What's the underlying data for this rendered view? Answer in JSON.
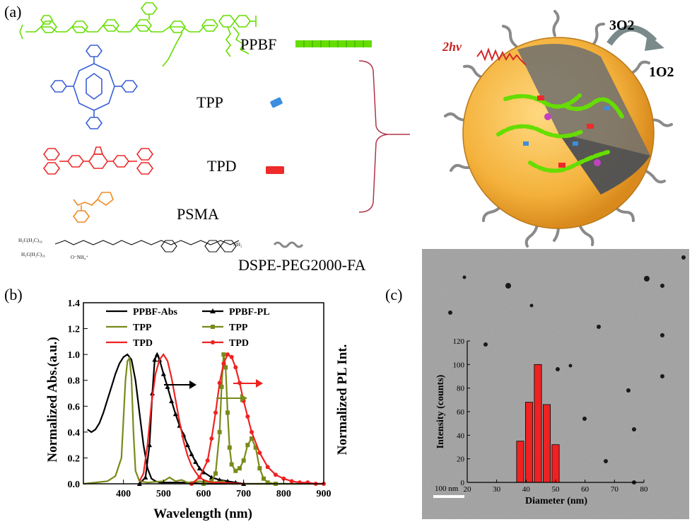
{
  "panel_a": {
    "label": "(a)",
    "molecules": [
      {
        "name": "PPBF",
        "color": "#66dd00"
      },
      {
        "name": "TPP",
        "color": "#3a5fd8"
      },
      {
        "name": "TPD",
        "color": "#ee2a2a"
      },
      {
        "name": "PSMA",
        "color": "#f08a24"
      },
      {
        "name": "DSPE-PEG2000-FA",
        "color": "#222222"
      }
    ],
    "dspe_fragments": {
      "chain1": "H3C(H2C)16",
      "chain2": "H3C(H2C)16",
      "nh4": "O-NH4+",
      "amine": "NH2"
    },
    "nanoparticle": {
      "excitation": "2hv",
      "oxygen_in": "3O2",
      "oxygen_out": "1O2"
    }
  },
  "panel_b": {
    "label": "(b)",
    "chart_data": {
      "type": "line",
      "xlabel": "Wavelength (nm)",
      "ylabel_left": "Normalized Abs.(a.u.)",
      "ylabel_right": "Normalized PL Int.",
      "xlim": [
        300,
        900
      ],
      "ylim": [
        0,
        1.4
      ],
      "xticks": [
        400,
        500,
        600,
        700,
        800,
        900
      ],
      "yticks": [
        "0.0",
        "0.2",
        "0.4",
        "0.6",
        "0.8",
        "1.0",
        "1.2",
        "1.4"
      ],
      "legend_position": "top",
      "series": [
        {
          "name": "PPBF-Abs",
          "color": "#000000",
          "marker": "none",
          "x": [
            310,
            320,
            330,
            340,
            350,
            360,
            370,
            380,
            390,
            400,
            410,
            420,
            430,
            440,
            450,
            460,
            470,
            480,
            490,
            500,
            520,
            560,
            600,
            700,
            900
          ],
          "y": [
            0.42,
            0.4,
            0.42,
            0.47,
            0.55,
            0.65,
            0.75,
            0.85,
            0.93,
            0.98,
            1.0,
            0.96,
            0.8,
            0.55,
            0.3,
            0.12,
            0.04,
            0.02,
            0.01,
            0.01,
            0.01,
            0.01,
            0.0,
            0.0,
            0.0
          ]
        },
        {
          "name": "PPBF-PL",
          "color": "#000000",
          "marker": "triangle",
          "x": [
            440,
            455,
            465,
            472,
            478,
            484,
            490,
            500,
            510,
            520,
            530,
            540,
            550,
            560,
            570,
            580,
            590,
            600,
            620,
            640,
            660,
            680,
            700
          ],
          "y": [
            0.0,
            0.05,
            0.3,
            0.7,
            0.96,
            1.0,
            0.96,
            0.85,
            0.75,
            0.64,
            0.54,
            0.45,
            0.38,
            0.3,
            0.23,
            0.17,
            0.12,
            0.09,
            0.05,
            0.03,
            0.02,
            0.01,
            0.0
          ]
        },
        {
          "name": "TPP",
          "color": "#7a8a1a",
          "marker": "none",
          "x": [
            300,
            360,
            380,
            395,
            405,
            410,
            415,
            420,
            425,
            430,
            440,
            460,
            500,
            515,
            530,
            545,
            560,
            590,
            620,
            650,
            660,
            700,
            900
          ],
          "y": [
            0.0,
            0.02,
            0.06,
            0.2,
            0.8,
            0.95,
            0.97,
            0.82,
            0.4,
            0.1,
            0.02,
            0.01,
            0.02,
            0.05,
            0.02,
            0.03,
            0.01,
            0.02,
            0.01,
            0.02,
            0.0,
            0.0,
            0.0
          ]
        },
        {
          "name": "TPP",
          "color": "#7a8a1a",
          "marker": "square",
          "x": [
            600,
            620,
            630,
            640,
            645,
            650,
            655,
            660,
            665,
            670,
            680,
            690,
            700,
            710,
            720,
            730,
            740,
            750,
            760,
            780
          ],
          "y": [
            0.0,
            0.02,
            0.08,
            0.4,
            0.75,
            1.0,
            0.9,
            0.55,
            0.28,
            0.15,
            0.1,
            0.12,
            0.18,
            0.3,
            0.35,
            0.28,
            0.12,
            0.04,
            0.01,
            0.0
          ]
        },
        {
          "name": "TPD",
          "color": "#ee2222",
          "marker": "none",
          "x": [
            440,
            450,
            460,
            470,
            480,
            490,
            500,
            510,
            520,
            530,
            540,
            550,
            560,
            570,
            580,
            590,
            600,
            620,
            640,
            700
          ],
          "y": [
            0.02,
            0.08,
            0.3,
            0.62,
            0.85,
            0.96,
            1.0,
            0.95,
            0.82,
            0.65,
            0.48,
            0.33,
            0.22,
            0.14,
            0.09,
            0.05,
            0.03,
            0.01,
            0.01,
            0.0
          ]
        },
        {
          "name": "TPD",
          "color": "#ee2222",
          "marker": "circle",
          "x": [
            570,
            590,
            610,
            620,
            630,
            640,
            650,
            660,
            670,
            680,
            690,
            700,
            710,
            720,
            740,
            760,
            780,
            800,
            820,
            840,
            860,
            880,
            900
          ],
          "y": [
            0.0,
            0.05,
            0.18,
            0.35,
            0.55,
            0.78,
            0.93,
            1.0,
            0.98,
            0.9,
            0.78,
            0.64,
            0.52,
            0.4,
            0.24,
            0.13,
            0.07,
            0.04,
            0.02,
            0.01,
            0.01,
            0.0,
            0.0
          ]
        }
      ]
    }
  },
  "panel_c": {
    "label": "(c)",
    "scale_bar": "100 nm",
    "chart_data": {
      "type": "bar",
      "xlabel": "Diameter (nm)",
      "ylabel": "Intensity (counts)",
      "xlim": [
        20,
        80
      ],
      "ylim": [
        0,
        120
      ],
      "xticks": [
        20,
        30,
        40,
        50,
        60,
        70,
        80
      ],
      "yticks": [
        0,
        20,
        40,
        60,
        80,
        100,
        120
      ],
      "categories": [
        38,
        41,
        44,
        47,
        50
      ],
      "values": [
        35,
        68,
        100,
        66,
        32
      ],
      "bar_color": "#ee2222"
    }
  }
}
